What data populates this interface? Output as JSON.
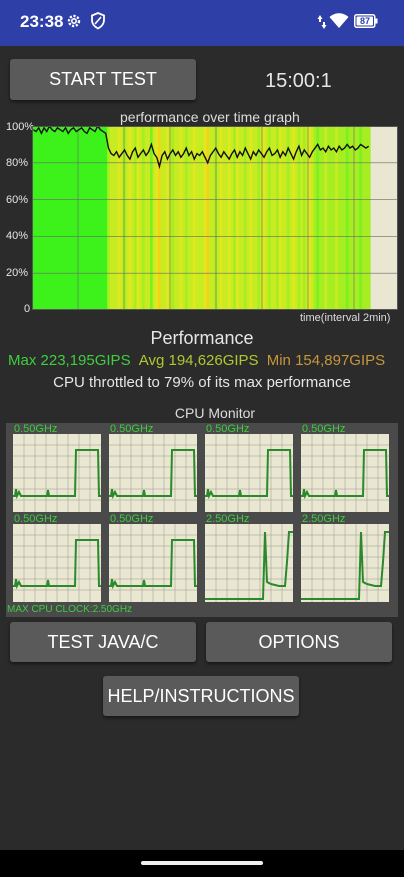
{
  "status_bar": {
    "time": "23:38",
    "battery": "87",
    "icons": [
      "gear-icon",
      "shield-icon",
      "data-arrows-icon",
      "wifi-icon",
      "battery-icon"
    ]
  },
  "controls": {
    "start_test_label": "START TEST",
    "timer": "15:00:1"
  },
  "graph": {
    "title": "performance over time graph",
    "y_ticks": [
      "100%",
      "80%",
      "60%",
      "40%",
      "20%",
      "0"
    ],
    "x_label": "time(interval 2min)"
  },
  "chart_data": {
    "type": "line",
    "title": "performance over time graph",
    "xlabel": "time(interval 2min)",
    "ylabel": "",
    "ylim": [
      0,
      100
    ],
    "y_ticks": [
      0,
      20,
      40,
      60,
      80,
      100
    ],
    "grid": true,
    "series": [
      {
        "values": [
          98,
          97,
          99,
          96,
          99,
          97,
          100,
          98,
          97,
          99,
          98,
          97,
          99,
          96,
          98,
          99,
          97,
          98,
          99,
          97,
          96,
          99,
          98,
          97,
          100,
          98,
          97,
          96,
          88,
          85,
          84,
          86,
          83,
          85,
          87,
          84,
          82,
          86,
          88,
          83,
          85,
          87,
          84,
          86,
          90,
          85,
          83,
          78,
          84,
          86,
          82,
          85,
          87,
          84,
          86,
          83,
          85,
          88,
          84,
          86,
          82,
          85,
          84,
          86,
          83,
          80,
          84,
          86,
          88,
          85,
          83,
          86,
          84,
          82,
          85,
          87,
          83,
          86,
          84,
          88,
          85,
          82,
          86,
          84,
          87,
          85,
          83,
          86,
          88,
          84,
          85,
          87,
          83,
          86,
          84,
          88,
          85,
          82,
          86,
          89,
          84,
          87,
          85,
          83,
          86,
          88,
          90,
          87,
          88,
          86,
          89,
          87,
          88,
          86,
          89,
          87,
          88,
          90,
          88,
          89,
          87,
          88,
          90,
          89,
          88,
          89
        ]
      }
    ]
  },
  "performance": {
    "title": "Performance",
    "max": "Max 223,195GIPS",
    "avg": "Avg 194,626GIPS",
    "min": "Min 154,897GIPS",
    "throttle": "CPU throttled to 79% of its max performance"
  },
  "cpu_monitor": {
    "title": "CPU Monitor",
    "cores": [
      {
        "clock": "0.50GHz"
      },
      {
        "clock": "0.50GHz"
      },
      {
        "clock": "0.50GHz"
      },
      {
        "clock": "0.50GHz"
      },
      {
        "clock": "0.50GHz"
      },
      {
        "clock": "0.50GHz"
      },
      {
        "clock": "2.50GHz"
      },
      {
        "clock": "2.50GHz"
      }
    ],
    "max_clock": "MAX CPU CLOCK:2.50GHz"
  },
  "buttons": {
    "test_java_c": "TEST JAVA/C",
    "options": "OPTIONS",
    "help": "HELP/INSTRUCTIONS"
  },
  "colors": {
    "status_bar": "#2f3fa8",
    "background": "#2b2b2b",
    "button": "#5a5a5a",
    "graph_bg": "#e9e6d2",
    "max_green": "#3ecf3e",
    "avg_yellow": "#b0c830",
    "min_orange": "#c8963a"
  }
}
